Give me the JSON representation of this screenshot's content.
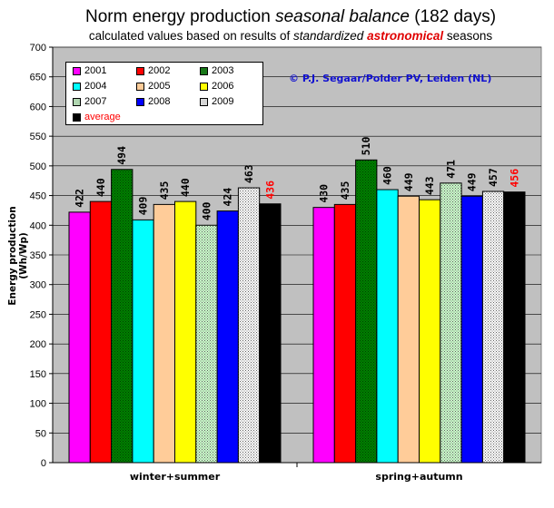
{
  "title_parts": [
    "Norm energy production ",
    "seasonal balance",
    " (182 days)"
  ],
  "subtitle_parts": [
    "calculated values based on results of ",
    "standardized",
    " ",
    "astronomical",
    " seasons"
  ],
  "credit": "© P.J. Segaar/Polder PV, Leiden (NL)",
  "colors": {
    "plot_bg": "#c0c0c0",
    "grid": "#808080",
    "average_label": "#ff0000"
  },
  "chart_data": {
    "type": "bar",
    "title": "Norm energy production seasonal balance (182 days)",
    "subtitle": "calculated values based on results of standardized astronomical seasons",
    "ylabel": "Energy production (Wh/Wp)",
    "xlabel": "",
    "ylim": [
      0,
      700
    ],
    "yticks": [
      0,
      50,
      100,
      150,
      200,
      250,
      300,
      350,
      400,
      450,
      500,
      550,
      600,
      650,
      700
    ],
    "grid": true,
    "legend_position": "top-left",
    "categories": [
      "winter+summer",
      "spring+autumn"
    ],
    "series": [
      {
        "name": "2001",
        "values": [
          422,
          430
        ],
        "color": "#ff00ff",
        "pattern": "solid"
      },
      {
        "name": "2002",
        "values": [
          440,
          435
        ],
        "color": "#ff0000",
        "pattern": "solid"
      },
      {
        "name": "2003",
        "values": [
          494,
          510
        ],
        "color": "#008000",
        "pattern": "dots"
      },
      {
        "name": "2004",
        "values": [
          409,
          460
        ],
        "color": "#00ffff",
        "pattern": "solid"
      },
      {
        "name": "2005",
        "values": [
          435,
          449
        ],
        "color": "#ffcc99",
        "pattern": "solid"
      },
      {
        "name": "2006",
        "values": [
          440,
          443
        ],
        "color": "#ffff00",
        "pattern": "solid"
      },
      {
        "name": "2007",
        "values": [
          400,
          471
        ],
        "color": "#ccffcc",
        "pattern": "dots"
      },
      {
        "name": "2008",
        "values": [
          424,
          449
        ],
        "color": "#0000ff",
        "pattern": "solid"
      },
      {
        "name": "2009",
        "values": [
          463,
          457
        ],
        "color": "#ffffff",
        "pattern": "dots"
      },
      {
        "name": "average",
        "values": [
          436,
          456
        ],
        "color": "#000000",
        "pattern": "solid"
      }
    ]
  }
}
